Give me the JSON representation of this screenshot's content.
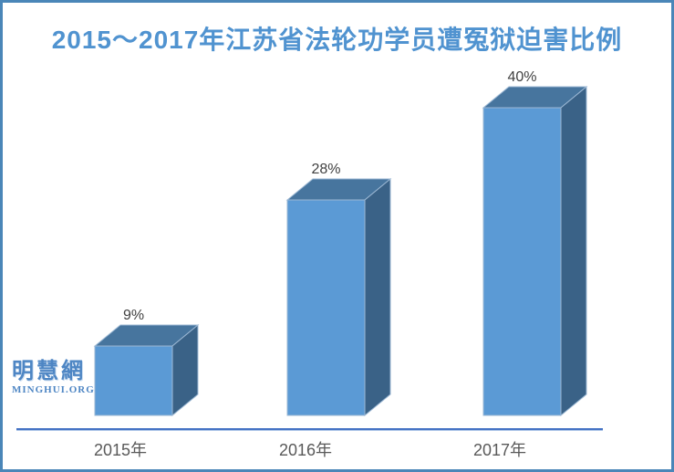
{
  "title": "2015～2017年江苏省法轮功学员遭冤狱迫害比例",
  "watermark": {
    "cn": "明慧網",
    "en": "MINGHUI.ORG"
  },
  "chart_data": {
    "type": "bar",
    "style": "3d",
    "title": "2015～2017年江苏省法轮功学员遭冤狱迫害比例",
    "categories": [
      "2015年",
      "2016年",
      "2017年"
    ],
    "values": [
      9,
      28,
      40
    ],
    "data_labels": [
      "9%",
      "28%",
      "40%"
    ],
    "unit": "percent",
    "ylim": [
      0,
      42
    ],
    "grid": false,
    "legend": false,
    "colors": {
      "bar_front": "#5b9ad5",
      "bar_top": "#47759e",
      "bar_side": "#3a6287",
      "bar_edge": "#9cb8d4",
      "axis_line": "#4472c4",
      "frame_border": "#4a86b8",
      "title_text": "#5093d0",
      "data_label_text": "#404040",
      "category_text": "#595959",
      "watermark_text": "#4e86c4"
    }
  }
}
